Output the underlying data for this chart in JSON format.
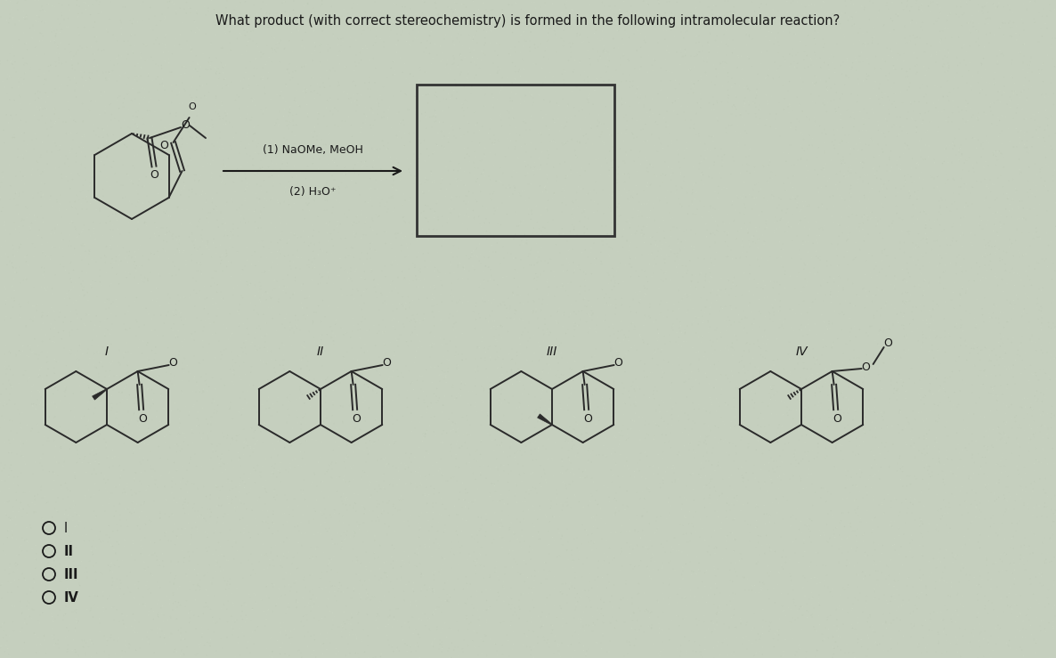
{
  "title": "What product (with correct stereochemistry) is formed in the following intramolecular reaction?",
  "title_fontsize": 10.5,
  "background_color": "#c5cfbe",
  "reagent_line1": "(1) NaOMe, MeOH",
  "reagent_line2": "(2) H₃O⁺",
  "text_color": "#1a1a1a",
  "radio_labels": [
    "I",
    "II",
    "III",
    "IV"
  ],
  "structure_labels": [
    "I",
    "II",
    "III",
    "IV"
  ]
}
